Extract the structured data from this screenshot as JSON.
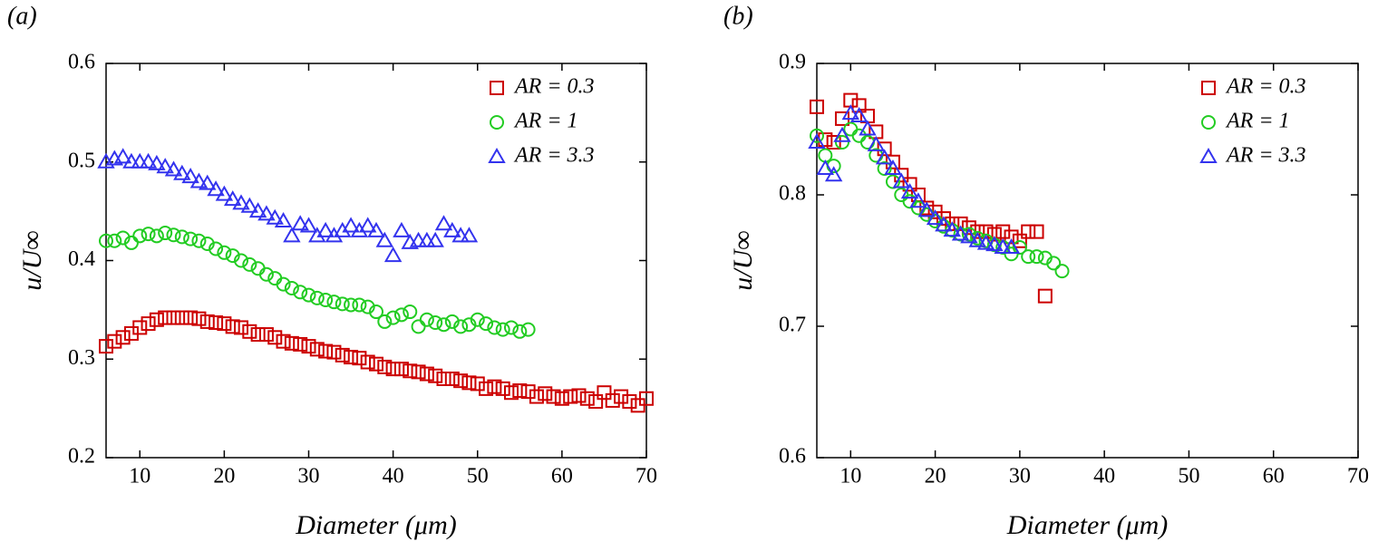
{
  "chart_data": [
    {
      "type": "scatter",
      "panel_label": "(a)",
      "x_label": "Diameter (μm)",
      "y_label": "u/U∞",
      "xlim": [
        6,
        70
      ],
      "xticks": [
        10,
        20,
        30,
        40,
        50,
        60,
        70
      ],
      "ylim": [
        0.2,
        0.6
      ],
      "yticks": [
        0.2,
        0.3,
        0.4,
        0.5,
        0.6
      ],
      "legend": "upper right",
      "series": [
        {
          "name": "AR = 0.3",
          "color": "#cc0000",
          "marker": "square",
          "x": [
            6,
            7,
            8,
            9,
            10,
            11,
            12,
            13,
            14,
            15,
            16,
            17,
            18,
            19,
            20,
            21,
            22,
            23,
            24,
            25,
            26,
            27,
            28,
            29,
            30,
            31,
            32,
            33,
            34,
            35,
            36,
            37,
            38,
            39,
            40,
            41,
            42,
            43,
            44,
            45,
            46,
            47,
            48,
            49,
            50,
            51,
            52,
            53,
            54,
            55,
            56,
            57,
            58,
            59,
            60,
            61,
            62,
            63,
            64,
            65,
            66,
            67,
            68,
            69,
            70
          ],
          "values": [
            0.313,
            0.318,
            0.322,
            0.326,
            0.332,
            0.336,
            0.34,
            0.342,
            0.342,
            0.342,
            0.342,
            0.341,
            0.338,
            0.337,
            0.336,
            0.333,
            0.332,
            0.328,
            0.325,
            0.325,
            0.322,
            0.318,
            0.316,
            0.315,
            0.313,
            0.31,
            0.308,
            0.307,
            0.304,
            0.302,
            0.301,
            0.297,
            0.295,
            0.292,
            0.29,
            0.29,
            0.288,
            0.287,
            0.285,
            0.283,
            0.28,
            0.28,
            0.278,
            0.276,
            0.275,
            0.27,
            0.272,
            0.27,
            0.266,
            0.268,
            0.267,
            0.262,
            0.265,
            0.262,
            0.26,
            0.262,
            0.263,
            0.26,
            0.257,
            0.266,
            0.258,
            0.262,
            0.257,
            0.253,
            0.26
          ]
        },
        {
          "name": "AR = 1",
          "color": "#22cc22",
          "marker": "circle",
          "x": [
            6,
            7,
            8,
            9,
            10,
            11,
            12,
            13,
            14,
            15,
            16,
            17,
            18,
            19,
            20,
            21,
            22,
            23,
            24,
            25,
            26,
            27,
            28,
            29,
            30,
            31,
            32,
            33,
            34,
            35,
            36,
            37,
            38,
            39,
            40,
            41,
            42,
            43,
            44,
            45,
            46,
            47,
            48,
            49,
            50,
            51,
            52,
            53,
            54,
            55,
            56
          ],
          "values": [
            0.42,
            0.42,
            0.423,
            0.418,
            0.425,
            0.427,
            0.425,
            0.428,
            0.426,
            0.424,
            0.422,
            0.42,
            0.417,
            0.412,
            0.408,
            0.405,
            0.4,
            0.396,
            0.392,
            0.386,
            0.382,
            0.376,
            0.372,
            0.368,
            0.365,
            0.362,
            0.36,
            0.358,
            0.356,
            0.355,
            0.355,
            0.353,
            0.348,
            0.338,
            0.342,
            0.345,
            0.348,
            0.333,
            0.34,
            0.337,
            0.335,
            0.338,
            0.333,
            0.335,
            0.34,
            0.336,
            0.332,
            0.33,
            0.332,
            0.328,
            0.33
          ]
        },
        {
          "name": "AR = 3.3",
          "color": "#3333ee",
          "marker": "triangle",
          "x": [
            6,
            7,
            8,
            9,
            10,
            11,
            12,
            13,
            14,
            15,
            16,
            17,
            18,
            19,
            20,
            21,
            22,
            23,
            24,
            25,
            26,
            27,
            28,
            29,
            30,
            31,
            32,
            33,
            34,
            35,
            36,
            37,
            38,
            39,
            40,
            41,
            42,
            43,
            44,
            45,
            46,
            47,
            48,
            49
          ],
          "values": [
            0.5,
            0.503,
            0.505,
            0.5,
            0.5,
            0.5,
            0.498,
            0.495,
            0.492,
            0.488,
            0.485,
            0.48,
            0.478,
            0.472,
            0.467,
            0.462,
            0.458,
            0.455,
            0.45,
            0.447,
            0.443,
            0.44,
            0.425,
            0.437,
            0.435,
            0.425,
            0.43,
            0.425,
            0.43,
            0.435,
            0.43,
            0.435,
            0.43,
            0.42,
            0.405,
            0.43,
            0.418,
            0.42,
            0.42,
            0.42,
            0.437,
            0.43,
            0.425,
            0.425
          ]
        }
      ]
    },
    {
      "type": "scatter",
      "panel_label": "(b)",
      "x_label": "Diameter (μm)",
      "y_label": "u/U∞",
      "xlim": [
        6,
        70
      ],
      "xticks": [
        10,
        20,
        30,
        40,
        50,
        60,
        70
      ],
      "ylim": [
        0.6,
        0.9
      ],
      "yticks": [
        0.6,
        0.7,
        0.8,
        0.9
      ],
      "legend": "upper right",
      "series": [
        {
          "name": "AR = 0.3",
          "color": "#cc0000",
          "marker": "square",
          "x": [
            6,
            7,
            8,
            9,
            10,
            11,
            12,
            13,
            14,
            15,
            16,
            17,
            18,
            19,
            20,
            21,
            22,
            23,
            24,
            25,
            26,
            27,
            28,
            29,
            30,
            31,
            32,
            33
          ],
          "values": [
            0.867,
            0.842,
            0.84,
            0.858,
            0.872,
            0.868,
            0.86,
            0.848,
            0.835,
            0.825,
            0.815,
            0.808,
            0.8,
            0.79,
            0.787,
            0.782,
            0.778,
            0.778,
            0.775,
            0.772,
            0.772,
            0.77,
            0.772,
            0.768,
            0.765,
            0.772,
            0.772,
            0.723
          ]
        },
        {
          "name": "AR = 1",
          "color": "#22cc22",
          "marker": "circle",
          "x": [
            6,
            7,
            8,
            9,
            10,
            11,
            12,
            13,
            14,
            15,
            16,
            17,
            18,
            19,
            20,
            21,
            22,
            23,
            24,
            25,
            26,
            27,
            28,
            29,
            30,
            31,
            32,
            33,
            34,
            35
          ],
          "values": [
            0.845,
            0.83,
            0.822,
            0.84,
            0.85,
            0.845,
            0.84,
            0.83,
            0.82,
            0.81,
            0.8,
            0.795,
            0.79,
            0.785,
            0.78,
            0.776,
            0.773,
            0.77,
            0.77,
            0.767,
            0.765,
            0.762,
            0.76,
            0.755,
            0.76,
            0.753,
            0.753,
            0.752,
            0.748,
            0.742
          ]
        },
        {
          "name": "AR = 3.3",
          "color": "#3333ee",
          "marker": "triangle",
          "x": [
            6,
            7,
            8,
            9,
            10,
            11,
            12,
            13,
            14,
            15,
            16,
            17,
            18,
            19,
            20,
            21,
            22,
            23,
            24,
            25,
            26,
            27,
            28,
            29
          ],
          "values": [
            0.84,
            0.82,
            0.815,
            0.845,
            0.862,
            0.86,
            0.85,
            0.838,
            0.828,
            0.82,
            0.81,
            0.802,
            0.795,
            0.788,
            0.782,
            0.777,
            0.773,
            0.77,
            0.768,
            0.765,
            0.763,
            0.762,
            0.76,
            0.76
          ]
        }
      ]
    }
  ]
}
